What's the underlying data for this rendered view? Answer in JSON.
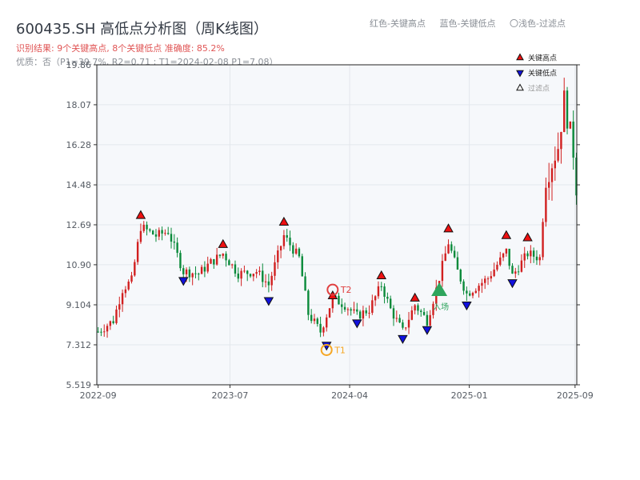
{
  "header": {
    "title": "600435.SH 高低点分析图（周K线图）",
    "result": "识别结果: 9个关键高点, 8个关键低点  准确度: 85.2%",
    "quality": "优质：否（P1=39.7%, R2=0.71 ; T1=2024-02-08 P1=7.08）"
  },
  "top_legend": {
    "red": "红色-关键高点",
    "blue": "蓝色-关键低点",
    "light": "〇浅色-过滤点"
  },
  "colors": {
    "up": "#d12020",
    "down": "#0a8a3a",
    "high_marker": "#ee1111",
    "low_marker": "#1111dd",
    "filtered": "#ffffff",
    "target": "#2fa55d",
    "t1": "#f5a623",
    "t2": "#e04040",
    "grid": "#e3e7ec",
    "plot_bg": "#f6f8fb"
  },
  "chart_data": {
    "type": "candlestick",
    "title": "",
    "xlabel": "",
    "ylabel": "",
    "ylim": [
      5.519,
      19.86
    ],
    "yticks": [
      5.519,
      7.312,
      9.104,
      10.9,
      12.69,
      14.48,
      16.28,
      18.07,
      19.86
    ],
    "ytick_labels": [
      "5.519",
      "7.312",
      "9.104",
      "10.90",
      "12.69",
      "14.48",
      "16.28",
      "18.07",
      "19.86"
    ],
    "xlim": [
      "2022-08-29",
      "2025-09-05"
    ],
    "xticks": [
      "2022-09-01",
      "2023-07-01",
      "2024-04-01",
      "2025-01-01",
      "2025-09-01"
    ],
    "xtick_labels": [
      "2022-09",
      "2023-07",
      "2024-04",
      "2025-01",
      "2025-09"
    ],
    "grid": true,
    "legend": {
      "position": "top-right",
      "entries": [
        {
          "name": "关键高点",
          "marker": "high"
        },
        {
          "name": "关键低点",
          "marker": "low"
        },
        {
          "name": "过滤点",
          "marker": "filtered"
        }
      ]
    },
    "candles_note": "",
    "key_highs": [
      {
        "date": "2022-12-08",
        "price": 13.1
      },
      {
        "date": "2023-06-15",
        "price": 11.8
      },
      {
        "date": "2023-11-02",
        "price": 12.8
      },
      {
        "date": "2024-02-22",
        "price": 9.5
      },
      {
        "date": "2024-06-13",
        "price": 10.4
      },
      {
        "date": "2024-08-29",
        "price": 9.4
      },
      {
        "date": "2024-11-14",
        "price": 12.5
      },
      {
        "date": "2025-03-27",
        "price": 12.2
      },
      {
        "date": "2025-05-15",
        "price": 12.1
      }
    ],
    "key_lows": [
      {
        "date": "2023-03-16",
        "price": 10.2
      },
      {
        "date": "2023-09-28",
        "price": 9.3
      },
      {
        "date": "2024-04-18",
        "price": 8.3
      },
      {
        "date": "2024-08-01",
        "price": 7.6
      },
      {
        "date": "2024-09-26",
        "price": 8.0
      },
      {
        "date": "2024-12-26",
        "price": 9.1
      },
      {
        "date": "2025-04-10",
        "price": 10.1
      },
      {
        "date": "2024-02-08",
        "price": 7.3
      }
    ],
    "annotations": [
      {
        "label": "T1",
        "date": "2024-02-08",
        "price": 7.08
      },
      {
        "label": "T2",
        "date": "2024-02-22",
        "price": 9.78
      },
      {
        "label": "入场",
        "date": "2024-10-24",
        "price": 9.75
      }
    ]
  }
}
